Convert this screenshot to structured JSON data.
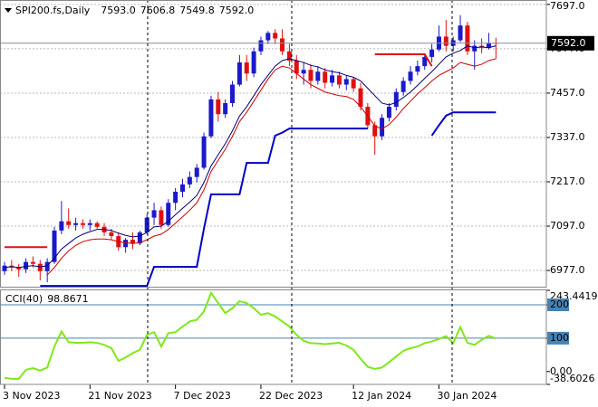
{
  "chart_data": [
    {
      "type": "candlestick",
      "title": "SPI200.fs,Daily",
      "last_bar_labels": [
        "7593.0",
        "7606.8",
        "7549.8",
        "7592.0"
      ],
      "last_price_label": "7592.0",
      "categories": [
        "3 Nov 2023",
        null,
        null,
        null,
        null,
        null,
        null,
        null,
        null,
        null,
        null,
        null,
        "21 Nov 2023",
        null,
        null,
        null,
        null,
        null,
        null,
        null,
        null,
        null,
        null,
        null,
        "7 Dec 2023",
        null,
        null,
        null,
        null,
        null,
        null,
        null,
        null,
        null,
        null,
        null,
        "22 Dec 2023",
        null,
        null,
        null,
        null,
        null,
        null,
        null,
        null,
        null,
        null,
        null,
        null,
        "12 Jan 2024",
        null,
        null,
        null,
        null,
        null,
        null,
        null,
        null,
        null,
        null,
        null,
        "30 Jan 2024",
        null,
        null,
        null,
        null,
        null,
        null,
        null,
        null
      ],
      "open": [
        6975,
        6990,
        6985,
        6980,
        7000,
        6995,
        6975,
        7000,
        7085,
        7110,
        7100,
        7105,
        7100,
        7105,
        7095,
        7080,
        7070,
        7040,
        7060,
        7050,
        7080,
        7120,
        7140,
        7100,
        7160,
        7190,
        7210,
        7230,
        7255,
        7340,
        7440,
        7400,
        7430,
        7480,
        7540,
        7510,
        7570,
        7600,
        7620,
        7605,
        7570,
        7545,
        7510,
        7520,
        7490,
        7515,
        7485,
        7505,
        7480,
        7495,
        7470,
        7420,
        7370,
        7340,
        7390,
        7420,
        7460,
        7490,
        7515,
        7530,
        7555,
        7575,
        7610,
        7585,
        7600,
        7640,
        7570,
        7585,
        7580,
        7593.0
      ],
      "high": [
        7000,
        7005,
        6995,
        7010,
        7015,
        7005,
        7010,
        7095,
        7165,
        7145,
        7120,
        7115,
        7115,
        7110,
        7105,
        7090,
        7080,
        7065,
        7080,
        7085,
        7130,
        7160,
        7150,
        7170,
        7200,
        7225,
        7245,
        7265,
        7350,
        7450,
        7460,
        7440,
        7490,
        7560,
        7560,
        7580,
        7610,
        7625,
        7630,
        7630,
        7590,
        7560,
        7540,
        7535,
        7530,
        7525,
        7520,
        7515,
        7505,
        7500,
        7485,
        7430,
        7380,
        7400,
        7430,
        7470,
        7500,
        7530,
        7545,
        7565,
        7590,
        7640,
        7655,
        7610,
        7668,
        7650,
        7600,
        7605,
        7620,
        7606.8
      ],
      "low": [
        6965,
        6975,
        6960,
        6970,
        6985,
        6950,
        6945,
        6995,
        7075,
        7090,
        7085,
        7090,
        7085,
        7090,
        7070,
        7060,
        7030,
        7025,
        7035,
        7045,
        7075,
        7100,
        7090,
        7095,
        7140,
        7175,
        7200,
        7215,
        7250,
        7335,
        7380,
        7390,
        7420,
        7475,
        7490,
        7500,
        7560,
        7590,
        7590,
        7560,
        7530,
        7495,
        7480,
        7470,
        7480,
        7470,
        7475,
        7470,
        7465,
        7460,
        7410,
        7360,
        7290,
        7330,
        7380,
        7410,
        7450,
        7480,
        7505,
        7520,
        7540,
        7570,
        7570,
        7570,
        7595,
        7560,
        7520,
        7565,
        7575,
        7549.8
      ],
      "close": [
        6990,
        6985,
        6980,
        7000,
        6995,
        6975,
        7000,
        7085,
        7110,
        7100,
        7105,
        7100,
        7105,
        7095,
        7080,
        7070,
        7040,
        7060,
        7050,
        7080,
        7120,
        7140,
        7100,
        7160,
        7190,
        7210,
        7230,
        7255,
        7340,
        7440,
        7400,
        7430,
        7480,
        7540,
        7510,
        7570,
        7600,
        7620,
        7605,
        7570,
        7545,
        7510,
        7520,
        7490,
        7515,
        7485,
        7505,
        7480,
        7495,
        7470,
        7420,
        7370,
        7340,
        7390,
        7420,
        7460,
        7490,
        7515,
        7530,
        7555,
        7575,
        7610,
        7585,
        7600,
        7640,
        7570,
        7585,
        7580,
        7593,
        7592.0
      ],
      "up_color": "#1a1acc",
      "down_color": "#e01010",
      "overlays": [
        {
          "color": "#00007a",
          "width": 1,
          "values": [
            6985,
            6987,
            6985,
            6988,
            6990,
            6987,
            6990,
            7010,
            7035,
            7050,
            7065,
            7075,
            7082,
            7088,
            7088,
            7085,
            7078,
            7072,
            7068,
            7070,
            7080,
            7095,
            7097,
            7110,
            7128,
            7145,
            7162,
            7180,
            7215,
            7260,
            7290,
            7320,
            7355,
            7395,
            7420,
            7450,
            7480,
            7505,
            7530,
            7545,
            7550,
            7545,
            7540,
            7532,
            7528,
            7520,
            7515,
            7512,
            7505,
            7500,
            7490,
            7470,
            7450,
            7430,
            7425,
            7432,
            7445,
            7460,
            7478,
            7497,
            7515,
            7535,
            7555,
            7565,
            7572,
            7585,
            7580,
            7582,
            7580,
            7585
          ]
        },
        {
          "color": "#cc0000",
          "width": 1,
          "values": [
            null,
            null,
            null,
            null,
            null,
            null,
            6965,
            6985,
            7010,
            7030,
            7045,
            7055,
            7060,
            7062,
            7062,
            7060,
            7055,
            7052,
            7050,
            7052,
            7060,
            7070,
            7075,
            7088,
            7105,
            7122,
            7140,
            7160,
            7195,
            7245,
            7275,
            7305,
            7340,
            7380,
            7405,
            7435,
            7465,
            7495,
            7520,
            7530,
            7525,
            7510,
            7495,
            7480,
            7470,
            7460,
            7455,
            7450,
            7448,
            7440,
            7420,
            7395,
            7368,
            7360,
            7372,
            7392,
            7415,
            7435,
            7455,
            7472,
            7490,
            7505,
            7515,
            7525,
            7540,
            7535,
            7530,
            7535,
            7545,
            7550
          ]
        },
        {
          "color": "#0000c8",
          "width": 2,
          "values": [
            null,
            null,
            null,
            null,
            null,
            6935,
            6935,
            6935,
            6935,
            6935,
            6935,
            6935,
            6935,
            6935,
            6935,
            6935,
            6935,
            6935,
            6935,
            6935,
            6935,
            6987,
            6987,
            6987,
            6987,
            6987,
            6987,
            6987,
            7090,
            7183,
            7183,
            7183,
            7183,
            7183,
            7268,
            7268,
            7268,
            7268,
            7342,
            7350,
            7361,
            7361,
            7361,
            7361,
            7361,
            7361,
            7361,
            7361,
            7361,
            7361,
            7361,
            7361,
            null,
            null,
            null,
            null,
            null,
            null,
            null,
            null,
            7342,
            7370,
            7396,
            7405,
            7405,
            7405,
            7405,
            7405,
            7405,
            7405
          ]
        },
        {
          "color": "#e01010",
          "width": 2,
          "values": [
            7040,
            7040,
            7040,
            7040,
            7040,
            7040,
            7040,
            null,
            null,
            null,
            null,
            null,
            null,
            null,
            null,
            null,
            null,
            null,
            null,
            null,
            null,
            null,
            null,
            null,
            null,
            null,
            null,
            null,
            null,
            null,
            null,
            null,
            null,
            null,
            null,
            null,
            null,
            null,
            null,
            null,
            null,
            null,
            null,
            null,
            null,
            null,
            null,
            null,
            null,
            null,
            null,
            null,
            7562,
            7562,
            7562,
            7562,
            7562,
            7562,
            7562,
            7562,
            7530,
            null,
            null,
            null,
            null,
            null,
            null,
            null,
            null,
            null
          ]
        }
      ],
      "ylim": [
        6933,
        7709
      ],
      "yticks": [
        {
          "value": 7697,
          "label": "7697.0"
        },
        {
          "value": 7577,
          "label": "7577.0"
        },
        {
          "value": 7457,
          "label": "7457.0"
        },
        {
          "value": 7337,
          "label": "7337.0"
        },
        {
          "value": 7217,
          "label": "7217.0"
        },
        {
          "value": 7097,
          "label": "7097.0"
        },
        {
          "value": 6977,
          "label": "6977.0"
        }
      ],
      "grid": true
    },
    {
      "type": "line",
      "series": [
        {
          "name": "CCI(40)",
          "color": "#7fe81a",
          "values": [
            -19,
            -22,
            -22,
            5,
            10,
            3,
            12,
            75,
            120,
            88,
            86,
            86,
            88,
            86,
            80,
            70,
            32,
            42,
            55,
            65,
            110,
            118,
            75,
            115,
            118,
            135,
            150,
            155,
            180,
            236,
            205,
            175,
            190,
            211,
            205,
            190,
            170,
            175,
            165,
            150,
            135,
            110,
            92,
            85,
            84,
            82,
            84,
            86,
            78,
            65,
            38,
            14,
            8,
            12,
            28,
            45,
            62,
            70,
            75,
            85,
            90,
            98,
            106,
            85,
            133,
            86,
            80,
            95,
            107,
            98.8671
          ]
        }
      ],
      "ylim": [
        -38.6026,
        243.4419
      ],
      "yticks": [
        243.4419,
        200,
        100,
        {
          "value": 0,
          "label": "0.00"
        },
        -38.6026
      ],
      "levels": [
        200,
        100
      ],
      "level_color": "#4682b4"
    }
  ]
}
